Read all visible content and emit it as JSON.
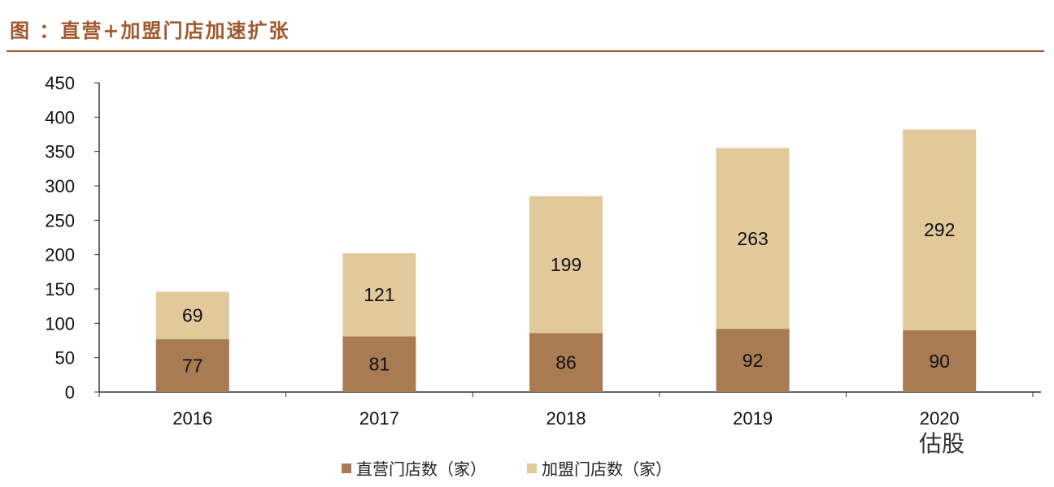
{
  "chart_data": {
    "type": "bar",
    "stacked": true,
    "title": "图 ：直营+加盟门店加速扩张",
    "categories": [
      "2016",
      "2017",
      "2018",
      "2019",
      "2020"
    ],
    "series": [
      {
        "name": "直营门店数（家）",
        "values": [
          77,
          81,
          86,
          92,
          90
        ],
        "color": "#a87b52"
      },
      {
        "name": "加盟门店数（家）",
        "values": [
          69,
          121,
          199,
          263,
          292
        ],
        "color": "#e2c99b"
      }
    ],
    "ylim": [
      0,
      450
    ],
    "yticks": [
      0,
      50,
      100,
      150,
      200,
      250,
      300,
      350,
      400,
      450
    ],
    "xlabel": "",
    "ylabel": "",
    "grid": false,
    "legend": "bottom"
  },
  "watermark": "估股",
  "title_color": "#a0582e"
}
